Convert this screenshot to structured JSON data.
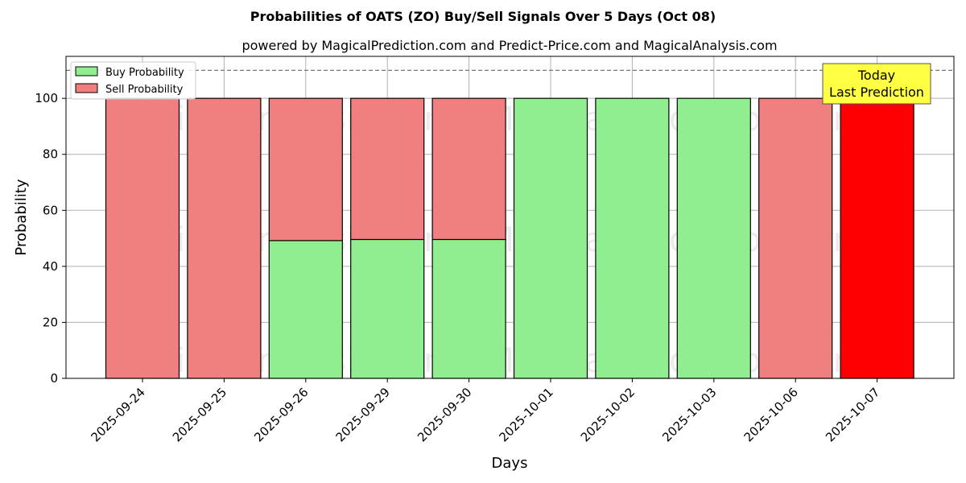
{
  "chart_data": {
    "type": "bar",
    "stacked": true,
    "title": "Probabilities of OATS (ZO) Buy/Sell Signals Over 5 Days (Oct 08)",
    "subtitle": "powered by MagicalPrediction.com and Predict-Price.com and MagicalAnalysis.com",
    "xlabel": "Days",
    "ylabel": "Probability",
    "ylim": [
      0,
      115
    ],
    "yticks": [
      0,
      20,
      40,
      60,
      80,
      100
    ],
    "grid": true,
    "legend_position": "top-left",
    "categories": [
      "2025-09-24",
      "2025-09-25",
      "2025-09-26",
      "2025-09-29",
      "2025-09-30",
      "2025-10-01",
      "2025-10-02",
      "2025-10-03",
      "2025-10-06",
      "2025-10-07"
    ],
    "series": [
      {
        "name": "Buy Probability",
        "color": "#90ee90",
        "values": [
          0,
          0,
          49.2,
          49.6,
          49.6,
          100,
          100,
          100,
          0,
          0
        ]
      },
      {
        "name": "Sell Probability",
        "color": "#f08080",
        "values": [
          100,
          100,
          50.8,
          50.4,
          50.4,
          0,
          0,
          0,
          100,
          100
        ]
      }
    ],
    "highlight": {
      "category": "2025-10-07",
      "color": "#ff0000"
    },
    "reference_line": {
      "y": 110,
      "style": "dashed"
    },
    "annotation": {
      "lines": [
        "Today",
        "Last Prediction"
      ],
      "background": "#ffff44"
    },
    "watermarks": [
      "MagicalAnalysis.com",
      "MagicalPrediction.com"
    ]
  }
}
